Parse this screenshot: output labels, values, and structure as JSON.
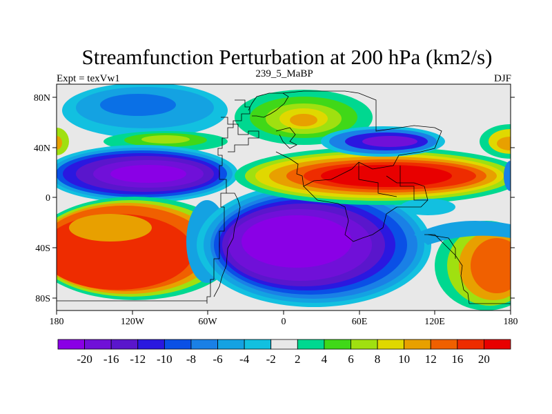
{
  "chart_data": {
    "type": "heatmap",
    "title": "Streamfunction Perturbation at 200 hPa (km2/s)",
    "left_label": "Expt = texVw1",
    "center_label": "239_5_MaBP",
    "right_label": "DJF",
    "x_range": [
      -180,
      180
    ],
    "y_range": [
      -90,
      90
    ],
    "x_ticks": [
      {
        "value": -180,
        "label": "180"
      },
      {
        "value": -120,
        "label": "120W"
      },
      {
        "value": -60,
        "label": "60W"
      },
      {
        "value": 0,
        "label": "0"
      },
      {
        "value": 60,
        "label": "60E"
      },
      {
        "value": 120,
        "label": "120E"
      },
      {
        "value": 180,
        "label": "180"
      }
    ],
    "y_ticks": [
      {
        "value": 80,
        "label": "80N"
      },
      {
        "value": 40,
        "label": "40N"
      },
      {
        "value": 0,
        "label": "0"
      },
      {
        "value": -40,
        "label": "40S"
      },
      {
        "value": -80,
        "label": "80S"
      }
    ],
    "colorbar": {
      "levels": [
        "-20",
        "-16",
        "-12",
        "-10",
        "-8",
        "-6",
        "-4",
        "-2",
        "2",
        "4",
        "6",
        "8",
        "10",
        "12",
        "16",
        "20"
      ],
      "colors": [
        "#8a00e6",
        "#7010d8",
        "#5a16cc",
        "#2a18e0",
        "#0a50e6",
        "#1a80e6",
        "#14a2e2",
        "#12c0e0",
        "#e8e8e8",
        "#00d890",
        "#40d818",
        "#a0e010",
        "#e0d800",
        "#e8a000",
        "#f06000",
        "#ee2c00",
        "#e80000"
      ]
    },
    "fields": [
      {
        "lon": -70,
        "lat": 72,
        "class": 6,
        "spread_lon": 32,
        "spread_lat": 10
      },
      {
        "lon": -110,
        "lat": 18,
        "class": 0,
        "spread_lon": 36,
        "spread_lat": 12
      },
      {
        "lon": -110,
        "lat": -35,
        "class": 15,
        "spread_lon": 44,
        "spread_lat": 22
      },
      {
        "lon": 25,
        "lat": -45,
        "class": 0,
        "spread_lon": 55,
        "spread_lat": 22
      },
      {
        "lon": 80,
        "lat": 20,
        "class": 16,
        "spread_lon": 50,
        "spread_lat": 10
      },
      {
        "lon": 90,
        "lat": 45,
        "class": 1,
        "spread_lon": 26,
        "spread_lat": 7
      },
      {
        "lon": 20,
        "lat": 62,
        "class": 12,
        "spread_lon": 22,
        "spread_lat": 16
      },
      {
        "lon": -80,
        "lat": 45,
        "class": 11,
        "spread_lon": 22,
        "spread_lat": 5
      },
      {
        "lon": 160,
        "lat": -45,
        "class": 14,
        "spread_lon": 22,
        "spread_lat": 26
      },
      {
        "lon": 145,
        "lat": -15,
        "class": 5,
        "spread_lon": 18,
        "spread_lat": 8
      },
      {
        "lon": 165,
        "lat": 42,
        "class": 14,
        "spread_lon": 18,
        "spread_lat": 6
      },
      {
        "lon": -175,
        "lat": 42,
        "class": 13,
        "spread_lon": 8,
        "spread_lat": 6
      },
      {
        "lon": 180,
        "lat": 18,
        "class": 3,
        "spread_lon": 6,
        "spread_lat": 8
      }
    ]
  }
}
